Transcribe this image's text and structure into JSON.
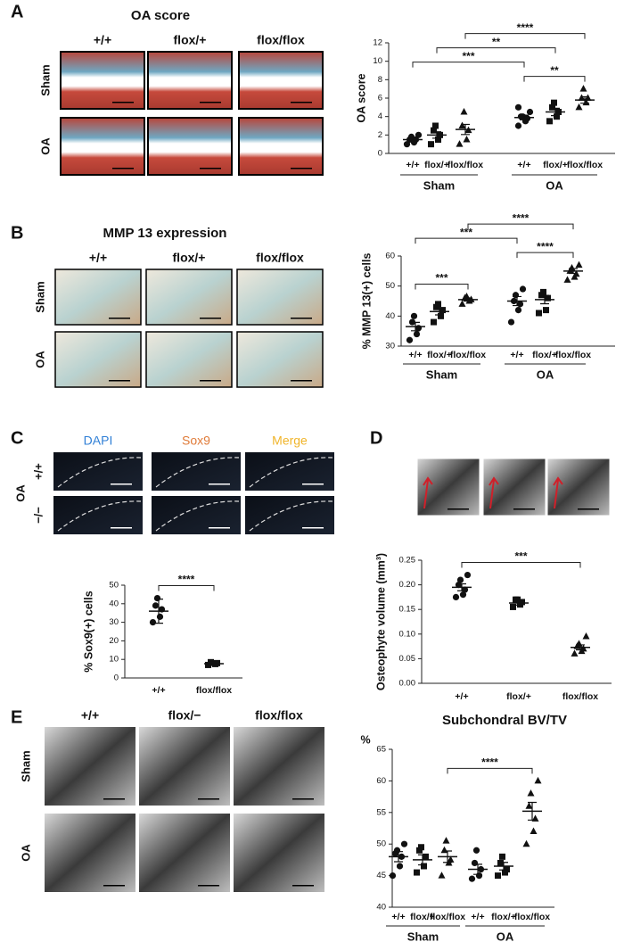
{
  "panels": [
    {
      "letter": "A",
      "title": "OA score",
      "columns": [
        "+/+",
        "flox/+",
        "flox/flox"
      ],
      "rows": [
        "Sham",
        "OA"
      ]
    },
    {
      "letter": "B",
      "title": "MMP 13 expression",
      "columns": [
        "+/+",
        "flox/+",
        "flox/flox"
      ],
      "rows": [
        "Sham",
        "OA"
      ]
    },
    {
      "letter": "C",
      "columns": [
        "DAPI",
        "Sox9",
        "Merge"
      ],
      "column_colors": [
        "#2f7fd6",
        "#e07b39",
        "#f0b429"
      ],
      "rows": [
        "+/+",
        "−/−"
      ],
      "side_label": "OA"
    },
    {
      "letter": "D"
    },
    {
      "letter": "E",
      "columns": [
        "+/+",
        "flox/−",
        "flox/flox"
      ],
      "rows": [
        "Sham",
        "OA"
      ]
    }
  ],
  "chart_data": [
    {
      "type": "dot",
      "ylabel": "OA score",
      "color": "#111111",
      "categories": [
        "+/+",
        "flox/+",
        "flox/flox",
        "+/+",
        "flox/+",
        "flox/flox"
      ],
      "markers": [
        "circle",
        "square",
        "triangle",
        "circle",
        "square",
        "triangle"
      ],
      "points": [
        [
          1,
          1.2,
          1.5,
          1.5,
          1.8,
          2
        ],
        [
          1,
          1.5,
          2,
          2.5,
          3
        ],
        [
          1,
          1.5,
          2.5,
          3,
          4.5
        ],
        [
          3,
          3.5,
          3.8,
          4,
          4,
          4.5,
          5
        ],
        [
          3.5,
          4,
          4.5,
          5,
          5.5
        ],
        [
          5,
          5.5,
          6,
          6,
          7
        ]
      ],
      "means": [
        1.5,
        2,
        2.6,
        3.9,
        4.5,
        5.8
      ],
      "errors": [
        0.15,
        0.35,
        0.55,
        0.25,
        0.4,
        0.35
      ],
      "ylim": [
        0,
        12
      ],
      "yticks": [
        0,
        2,
        4,
        6,
        8,
        10,
        12
      ],
      "groups": [
        {
          "label": "Sham",
          "from": 0,
          "to": 2
        },
        {
          "label": "OA",
          "from": 3,
          "to": 5
        }
      ],
      "brackets": [
        {
          "from": 3,
          "to": 5,
          "label": "**"
        },
        {
          "from": 0,
          "to": 3,
          "label": "***"
        },
        {
          "from": 1,
          "to": 4,
          "label": "**"
        },
        {
          "from": 2,
          "to": 5,
          "label": "****"
        }
      ]
    },
    {
      "type": "dot",
      "ylabel": "% MMP 13(+) cells",
      "color": "#111111",
      "categories": [
        "+/+",
        "flox/+",
        "flox/flox",
        "+/+",
        "flox/+",
        "flox/flox"
      ],
      "markers": [
        "circle",
        "square",
        "triangle",
        "circle",
        "square",
        "triangle"
      ],
      "points": [
        [
          32,
          34,
          36,
          38,
          40
        ],
        [
          38,
          40,
          42,
          43,
          44
        ],
        [
          44,
          45,
          45.5,
          46,
          46.5
        ],
        [
          38,
          42,
          44,
          45,
          47,
          49
        ],
        [
          41,
          42,
          46,
          47,
          48
        ],
        [
          52,
          53,
          54,
          55,
          56,
          57
        ]
      ],
      "means": [
        36.5,
        41.5,
        45.5,
        45,
        45.5,
        55
      ],
      "errors": [
        1.4,
        1.1,
        0.5,
        1.5,
        1.4,
        0.8
      ],
      "ylim": [
        30,
        60
      ],
      "yticks": [
        30,
        40,
        50,
        60
      ],
      "groups": [
        {
          "label": "Sham",
          "from": 0,
          "to": 2
        },
        {
          "label": "OA",
          "from": 3,
          "to": 5
        }
      ],
      "brackets": [
        {
          "from": 0,
          "to": 2,
          "label": "***"
        },
        {
          "from": 3,
          "to": 5,
          "label": "****"
        },
        {
          "from": 0,
          "to": 3,
          "label": "***"
        },
        {
          "from": 2,
          "to": 5,
          "label": "****"
        }
      ]
    },
    {
      "type": "dot",
      "ylabel": "% Sox9(+) cells",
      "color": "#111111",
      "categories": [
        "+/+",
        "flox/flox"
      ],
      "markers": [
        "circle",
        "square"
      ],
      "points": [
        [
          30,
          33,
          37,
          39,
          43
        ],
        [
          7,
          7.5,
          8,
          8.5
        ]
      ],
      "means": [
        36,
        7.7
      ],
      "errors": [
        6.5,
        1
      ],
      "ylim": [
        0,
        50
      ],
      "yticks": [
        0,
        10,
        20,
        30,
        40,
        50
      ],
      "brackets": [
        {
          "from": 0,
          "to": 1,
          "label": "****"
        }
      ]
    },
    {
      "type": "dot",
      "ylabel": "Osteophyte volume (mm³)",
      "color": "#111111",
      "categories": [
        "+/+",
        "flox/+",
        "flox/flox"
      ],
      "markers": [
        "circle",
        "square",
        "triangle"
      ],
      "points": [
        [
          0.175,
          0.18,
          0.19,
          0.2,
          0.21,
          0.22
        ],
        [
          0.155,
          0.16,
          0.165,
          0.17,
          0.17
        ],
        [
          0.06,
          0.065,
          0.07,
          0.075,
          0.08,
          0.095
        ]
      ],
      "means": [
        0.195,
        0.163,
        0.073
      ],
      "errors": [
        0.007,
        0.004,
        0.005
      ],
      "ylim": [
        0,
        0.25
      ],
      "yticks": [
        {
          "value": 0,
          "label": "0.00"
        },
        {
          "value": 0.05,
          "label": "0.05"
        },
        {
          "value": 0.1,
          "label": "0.10"
        },
        {
          "value": 0.15,
          "label": "0.15"
        },
        {
          "value": 0.2,
          "label": "0.20"
        },
        {
          "value": 0.25,
          "label": "0.25"
        }
      ],
      "brackets": [
        {
          "from": 0,
          "to": 2,
          "label": "***"
        }
      ]
    },
    {
      "type": "dot",
      "title": "Subchondral BV/TV",
      "ylabel": "%",
      "color": "#111111",
      "categories": [
        "+/+",
        "flox/+",
        "flox/flox",
        "+/+",
        "flox/+",
        "flox/flox"
      ],
      "markers": [
        "circle",
        "square",
        "triangle",
        "circle",
        "square",
        "triangle"
      ],
      "points": [
        [
          45,
          46.5,
          48,
          48.5,
          49,
          50
        ],
        [
          45.5,
          46.5,
          48,
          49,
          49.5
        ],
        [
          45,
          47,
          47.5,
          49,
          50.5
        ],
        [
          44.5,
          45,
          46,
          47,
          49
        ],
        [
          45,
          45.5,
          46,
          47,
          48
        ],
        [
          50,
          52,
          54,
          56,
          58,
          60
        ]
      ],
      "means": [
        48,
        47.5,
        48,
        46,
        46.5,
        55.2
      ],
      "errors": [
        0.8,
        0.8,
        0.9,
        0.8,
        0.6,
        1.4
      ],
      "ylim": [
        40,
        65
      ],
      "yticks": [
        40,
        45,
        50,
        55,
        60,
        65
      ],
      "groups": [
        {
          "label": "Sham",
          "from": 0,
          "to": 2
        },
        {
          "label": "OA",
          "from": 3,
          "to": 5
        }
      ],
      "brackets": [
        {
          "from": 2,
          "to": 5,
          "label": "****"
        }
      ]
    }
  ]
}
